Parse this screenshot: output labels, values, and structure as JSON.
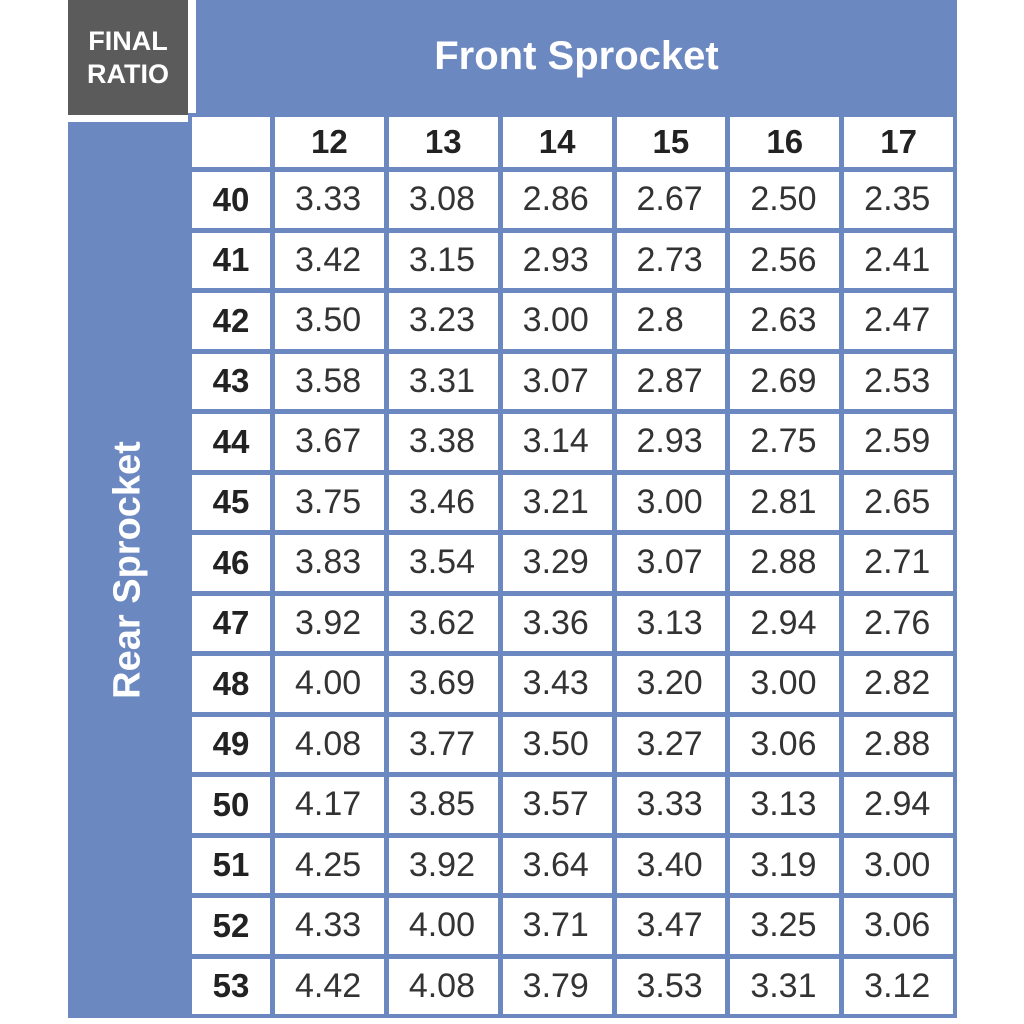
{
  "corner_label": [
    "FINAL",
    "RATIO"
  ],
  "column_header": "Front Sprocket",
  "row_header": "Rear Sprocket",
  "colors": {
    "header_blue": "#6b88c0",
    "corner_gray": "#5b5b5b"
  },
  "chart_data": {
    "type": "table",
    "title": "FINAL RATIO",
    "column_axis": "Front Sprocket",
    "row_axis": "Rear Sprocket",
    "columns": [
      "12",
      "13",
      "14",
      "15",
      "16",
      "17"
    ],
    "rows": [
      {
        "label": "40",
        "values": [
          "3.33",
          "3.08",
          "2.86",
          "2.67",
          "2.50",
          "2.35"
        ]
      },
      {
        "label": "41",
        "values": [
          "3.42",
          "3.15",
          "2.93",
          "2.73",
          "2.56",
          "2.41"
        ]
      },
      {
        "label": "42",
        "values": [
          "3.50",
          "3.23",
          "3.00",
          "2.8",
          "2.63",
          "2.47"
        ]
      },
      {
        "label": "43",
        "values": [
          "3.58",
          "3.31",
          "3.07",
          "2.87",
          "2.69",
          "2.53"
        ]
      },
      {
        "label": "44",
        "values": [
          "3.67",
          "3.38",
          "3.14",
          "2.93",
          "2.75",
          "2.59"
        ]
      },
      {
        "label": "45",
        "values": [
          "3.75",
          "3.46",
          "3.21",
          "3.00",
          "2.81",
          "2.65"
        ]
      },
      {
        "label": "46",
        "values": [
          "3.83",
          "3.54",
          "3.29",
          "3.07",
          "2.88",
          "2.71"
        ]
      },
      {
        "label": "47",
        "values": [
          "3.92",
          "3.62",
          "3.36",
          "3.13",
          "2.94",
          "2.76"
        ]
      },
      {
        "label": "48",
        "values": [
          "4.00",
          "3.69",
          "3.43",
          "3.20",
          "3.00",
          "2.82"
        ]
      },
      {
        "label": "49",
        "values": [
          "4.08",
          "3.77",
          "3.50",
          "3.27",
          "3.06",
          "2.88"
        ]
      },
      {
        "label": "50",
        "values": [
          "4.17",
          "3.85",
          "3.57",
          "3.33",
          "3.13",
          "2.94"
        ]
      },
      {
        "label": "51",
        "values": [
          "4.25",
          "3.92",
          "3.64",
          "3.40",
          "3.19",
          "3.00"
        ]
      },
      {
        "label": "52",
        "values": [
          "4.33",
          "4.00",
          "3.71",
          "3.47",
          "3.25",
          "3.06"
        ]
      },
      {
        "label": "53",
        "values": [
          "4.42",
          "4.08",
          "3.79",
          "3.53",
          "3.31",
          "3.12"
        ]
      }
    ]
  }
}
